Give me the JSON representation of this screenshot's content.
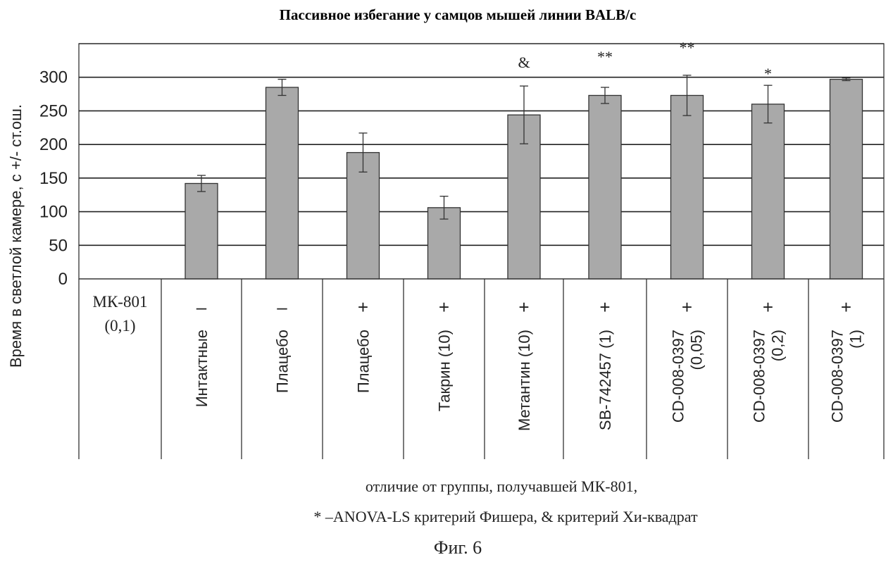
{
  "chart_data": {
    "type": "bar",
    "title": "Пассивное избегание у самцов мышей линии BALB/c",
    "ylabel": "Время в светлой камере, с +/- ст.ош.",
    "ylim": [
      0,
      350
    ],
    "yticks": [
      "0",
      "50",
      "100",
      "150",
      "200",
      "250",
      "300"
    ],
    "grid": true,
    "row_header": [
      "МК-801",
      "(0,1)"
    ],
    "categories": [
      {
        "label": [
          "Интактные"
        ],
        "mk801": "–",
        "value": 142,
        "err": 12,
        "sig": ""
      },
      {
        "label": [
          "Плацебо"
        ],
        "mk801": "–",
        "value": 285,
        "err": 12,
        "sig": ""
      },
      {
        "label": [
          "Плацебо"
        ],
        "mk801": "+",
        "value": 188,
        "err": 29,
        "sig": ""
      },
      {
        "label": [
          "Такрин (10)"
        ],
        "mk801": "+",
        "value": 106,
        "err": 17,
        "sig": ""
      },
      {
        "label": [
          "Метантин (10)"
        ],
        "mk801": "+",
        "value": 244,
        "err": 43,
        "sig": "&"
      },
      {
        "label": [
          "SB-742457 (1)"
        ],
        "mk801": "+",
        "value": 273,
        "err": 12,
        "sig": "**"
      },
      {
        "label": [
          "CD-008-0397",
          "(0,05)"
        ],
        "mk801": "+",
        "value": 273,
        "err": 30,
        "sig": "**"
      },
      {
        "label": [
          "CD-008-0397",
          "(0,2)"
        ],
        "mk801": "+",
        "value": 260,
        "err": 28,
        "sig": "*"
      },
      {
        "label": [
          "CD-008-0397",
          "(1)"
        ],
        "mk801": "+",
        "value": 297,
        "err": 2,
        "sig": ""
      }
    ],
    "colors": {
      "bar": "#a9a9a9",
      "bar_edge": "#333333",
      "grid": "#222222"
    }
  },
  "footnote": {
    "line1": "отличие от группы, получавшей МК-801,",
    "line2": "* –ANOVA-LS критерий Фишера, & критерий Хи-квадрат"
  },
  "figure_caption": "Фиг. 6"
}
